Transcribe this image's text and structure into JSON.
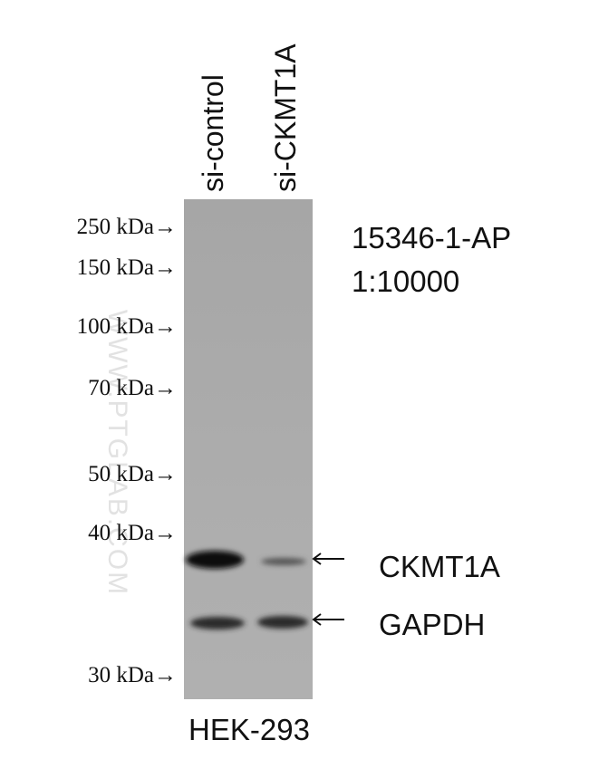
{
  "lanes": [
    "si-control",
    "si-CKMT1A"
  ],
  "markers": [
    "250 kDa→",
    "150 kDa→",
    "100 kDa→",
    "70 kDa→",
    "50 kDa→",
    "40 kDa→",
    "30 kDa→"
  ],
  "antibody": "15346-1-AP",
  "dilution": "1:10000",
  "bands": [
    "CKMT1A",
    "GAPDH"
  ],
  "cell_line": "HEK-293",
  "watermark": "WWW.PTGLAB.COM"
}
